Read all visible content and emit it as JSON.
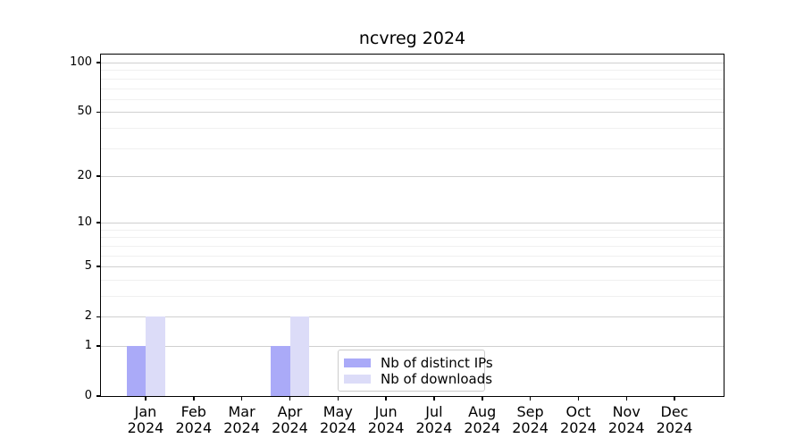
{
  "chart_data": {
    "type": "bar",
    "title": "ncvreg 2024",
    "year_label": "2024",
    "categories": [
      "Jan",
      "Feb",
      "Mar",
      "Apr",
      "May",
      "Jun",
      "Jul",
      "Aug",
      "Sep",
      "Oct",
      "Nov",
      "Dec"
    ],
    "series": [
      {
        "name": "Nb of distinct IPs",
        "color": "#aaaaf8",
        "values": [
          1,
          0,
          0,
          1,
          0,
          0,
          0,
          0,
          0,
          0,
          0,
          0
        ]
      },
      {
        "name": "Nb of downloads",
        "color": "#dcdcf8",
        "values": [
          2,
          0,
          0,
          2,
          0,
          0,
          0,
          0,
          0,
          0,
          0,
          0
        ]
      }
    ],
    "y_axis": {
      "scale": "log1p",
      "tick_values": [
        0,
        1,
        2,
        5,
        10,
        20,
        50,
        100
      ],
      "minor_gridline_values": [
        3,
        4,
        6,
        7,
        8,
        9,
        30,
        40,
        60,
        70,
        80,
        90
      ],
      "max": 112
    },
    "x_axis": {
      "tick_label_lines": 2
    },
    "legend": {
      "position": "lower-center",
      "entries": [
        "Nb of distinct IPs",
        "Nb of downloads"
      ]
    },
    "grid": true,
    "colors": {
      "major_gridline": "#d0d0d0",
      "minor_gridline": "#f0f0f0",
      "axis": "#000000"
    }
  }
}
